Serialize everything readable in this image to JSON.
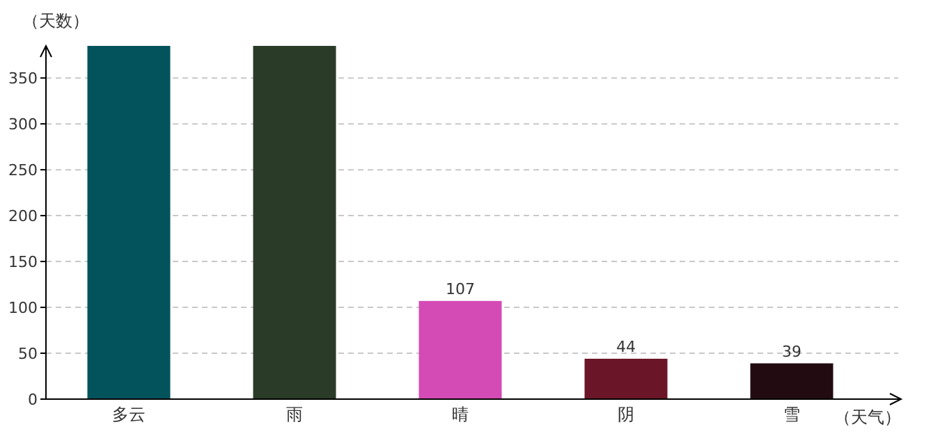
{
  "chart_data": {
    "type": "bar",
    "xlabel": "（天气）",
    "ylabel": "（天数）",
    "categories": [
      "多云",
      "雨",
      "晴",
      "阴",
      "雪"
    ],
    "values": [
      385,
      385,
      107,
      44,
      39
    ],
    "colors": [
      "#02535c",
      "#2a3b28",
      "#d54bb5",
      "#6b1628",
      "#220c12"
    ],
    "value_labels": [
      null,
      null,
      "107",
      "44",
      "39"
    ],
    "ylim": [
      0,
      385
    ],
    "yticks": [
      0,
      50,
      100,
      150,
      200,
      250,
      300,
      350
    ],
    "grid": "y"
  }
}
